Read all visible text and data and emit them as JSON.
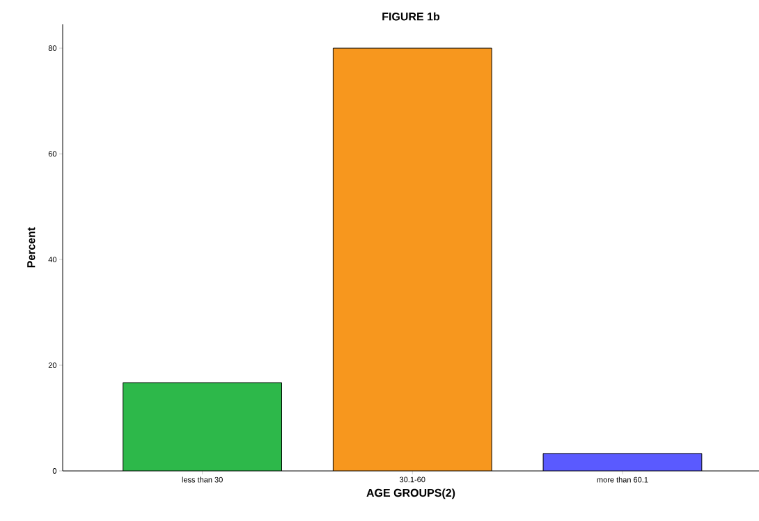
{
  "chart_data": {
    "type": "bar",
    "title": "FIGURE 1b",
    "xlabel": "AGE GROUPS(2)",
    "ylabel": "Percent",
    "categories": [
      "less than 30",
      "30.1-60",
      "more than 60.1"
    ],
    "values": [
      16.7,
      80.0,
      3.3
    ],
    "colors": [
      "#2db84a",
      "#f7971e",
      "#5a5aff"
    ],
    "ylim": [
      0,
      84.5
    ],
    "yticks": [
      0,
      20,
      40,
      60,
      80
    ],
    "grid": false
  }
}
